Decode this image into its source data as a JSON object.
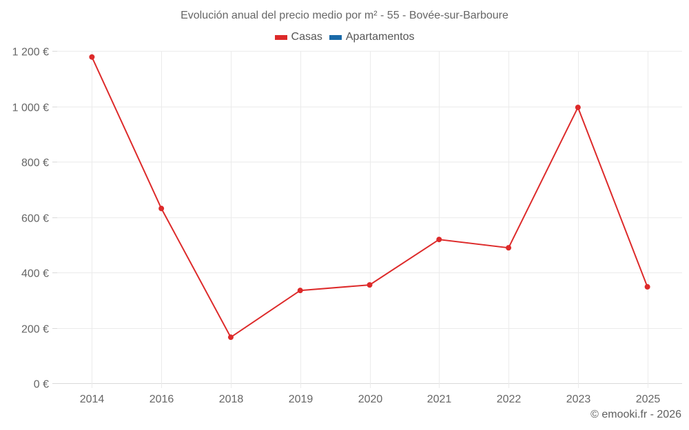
{
  "header": {
    "title": "Evolución anual del precio medio por m² - 55 - Bovée-sur-Barboure"
  },
  "legend": [
    {
      "label": "Casas",
      "color": "#dd2a2a"
    },
    {
      "label": "Apartamentos",
      "color": "#1a6aa8"
    }
  ],
  "footer": {
    "credit": "© emooki.fr - 2026"
  },
  "colors": {
    "casas": "#dd2a2a",
    "apartamentos": "#1a6aa8",
    "grid": "#ebebeb",
    "axis": "#d9d9d9"
  },
  "chart_data": {
    "type": "line",
    "title": "Evolución anual del precio medio por m² - 55 - Bovée-sur-Barboure",
    "xlabel": "",
    "ylabel": "",
    "categories": [
      "2014",
      "2016",
      "2018",
      "2019",
      "2020",
      "2021",
      "2022",
      "2023",
      "2025"
    ],
    "series": [
      {
        "name": "Casas",
        "color": "#dd2a2a",
        "values": [
          1178,
          631,
          166,
          335,
          355,
          519,
          489,
          996,
          348
        ]
      },
      {
        "name": "Apartamentos",
        "color": "#1a6aa8",
        "values": []
      }
    ],
    "ylim": [
      0,
      1200
    ],
    "yticks": [
      0,
      200,
      400,
      600,
      800,
      1000,
      1200
    ],
    "ytick_labels": [
      "0 €",
      "200 €",
      "400 €",
      "600 €",
      "800 €",
      "1 000 €",
      "1 200 €"
    ],
    "grid": true,
    "legend_position": "top"
  }
}
